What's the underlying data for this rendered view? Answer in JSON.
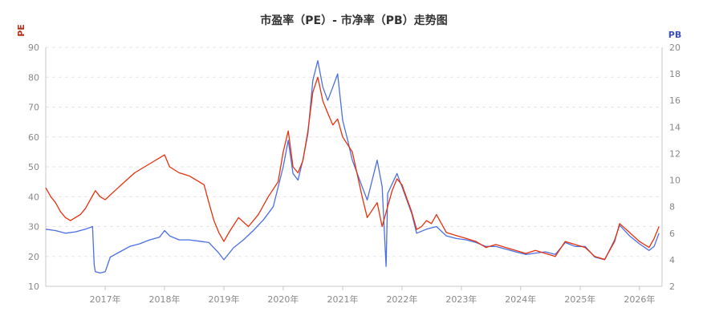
{
  "chart_data": {
    "type": "line",
    "title": "市盈率（PE）- 市净率（PB）走势图",
    "y_left_label": "PE",
    "y_right_label": "PB",
    "y_left_range": [
      10,
      90
    ],
    "y_left_ticks": [
      "10",
      "20",
      "30",
      "40",
      "50",
      "60",
      "70",
      "80",
      "90"
    ],
    "y_right_range": [
      2,
      20
    ],
    "y_right_ticks": [
      "2",
      "4",
      "6",
      "8",
      "10",
      "12",
      "14",
      "16",
      "18",
      "20"
    ],
    "x_range": [
      "2016-01-01",
      "2026-05-20"
    ],
    "x_ticks": [
      "2017年",
      "2018年",
      "2019年",
      "2020年",
      "2021年",
      "2022年",
      "2023年",
      "2024年",
      "2025年",
      "2026年"
    ],
    "grid": true,
    "colors": {
      "pe": "#e8300c",
      "pb": "#4a6fe3",
      "grid": "#e6e6e6",
      "axis": "#c8c8c8",
      "pe_label": "#b5311a",
      "pb_label": "#3d4fb8"
    },
    "series": [
      {
        "name": "PE",
        "axis": "left",
        "points": [
          [
            "2016-01-01",
            43
          ],
          [
            "2016-02-01",
            40
          ],
          [
            "2016-03-01",
            38
          ],
          [
            "2016-04-01",
            35
          ],
          [
            "2016-05-01",
            33
          ],
          [
            "2016-06-01",
            32
          ],
          [
            "2016-07-01",
            33
          ],
          [
            "2016-08-01",
            34
          ],
          [
            "2016-09-01",
            36
          ],
          [
            "2016-10-01",
            39
          ],
          [
            "2016-11-01",
            42
          ],
          [
            "2016-12-01",
            40
          ],
          [
            "2017-01-01",
            39
          ],
          [
            "2017-03-01",
            42
          ],
          [
            "2017-05-01",
            45
          ],
          [
            "2017-07-01",
            48
          ],
          [
            "2017-09-01",
            50
          ],
          [
            "2017-11-01",
            52
          ],
          [
            "2018-01-01",
            54
          ],
          [
            "2018-02-01",
            50
          ],
          [
            "2018-04-01",
            48
          ],
          [
            "2018-06-01",
            47
          ],
          [
            "2018-08-01",
            45
          ],
          [
            "2018-09-01",
            44
          ],
          [
            "2018-10-01",
            38
          ],
          [
            "2018-11-01",
            32
          ],
          [
            "2018-12-01",
            28
          ],
          [
            "2019-01-01",
            25
          ],
          [
            "2019-02-01",
            28
          ],
          [
            "2019-04-01",
            33
          ],
          [
            "2019-06-01",
            30
          ],
          [
            "2019-08-01",
            34
          ],
          [
            "2019-10-01",
            40
          ],
          [
            "2019-12-01",
            45
          ],
          [
            "2020-01-01",
            55
          ],
          [
            "2020-02-01",
            62
          ],
          [
            "2020-03-01",
            50
          ],
          [
            "2020-04-01",
            48
          ],
          [
            "2020-05-01",
            52
          ],
          [
            "2020-06-01",
            62
          ],
          [
            "2020-07-01",
            75
          ],
          [
            "2020-08-01",
            80
          ],
          [
            "2020-09-01",
            72
          ],
          [
            "2020-10-01",
            68
          ],
          [
            "2020-11-01",
            64
          ],
          [
            "2020-12-01",
            66
          ],
          [
            "2021-01-01",
            60
          ],
          [
            "2021-03-01",
            55
          ],
          [
            "2021-05-01",
            40
          ],
          [
            "2021-06-01",
            33
          ],
          [
            "2021-08-01",
            38
          ],
          [
            "2021-09-01",
            30
          ],
          [
            "2021-11-01",
            42
          ],
          [
            "2021-12-01",
            46
          ],
          [
            "2022-01-01",
            44
          ],
          [
            "2022-03-01",
            35
          ],
          [
            "2022-04-01",
            29
          ],
          [
            "2022-05-01",
            30
          ],
          [
            "2022-06-01",
            32
          ],
          [
            "2022-07-01",
            31
          ],
          [
            "2022-08-01",
            34
          ],
          [
            "2022-10-01",
            28
          ],
          [
            "2022-12-01",
            27
          ],
          [
            "2023-02-01",
            26
          ],
          [
            "2023-04-01",
            25
          ],
          [
            "2023-06-01",
            23
          ],
          [
            "2023-08-01",
            24
          ],
          [
            "2023-10-01",
            23
          ],
          [
            "2023-12-01",
            22
          ],
          [
            "2024-02-01",
            21
          ],
          [
            "2024-04-01",
            22
          ],
          [
            "2024-06-01",
            21
          ],
          [
            "2024-08-01",
            20
          ],
          [
            "2024-10-01",
            25
          ],
          [
            "2024-12-01",
            24
          ],
          [
            "2025-02-01",
            23
          ],
          [
            "2025-04-01",
            20
          ],
          [
            "2025-06-01",
            19
          ],
          [
            "2025-08-01",
            25
          ],
          [
            "2025-09-01",
            31
          ],
          [
            "2025-11-01",
            28
          ],
          [
            "2026-01-01",
            25
          ],
          [
            "2026-03-01",
            23
          ],
          [
            "2026-04-01",
            26
          ],
          [
            "2026-05-01",
            30
          ]
        ]
      },
      {
        "name": "PB",
        "axis": "right",
        "points": [
          [
            "2016-01-01",
            6.3
          ],
          [
            "2016-03-01",
            6.2
          ],
          [
            "2016-05-01",
            6.0
          ],
          [
            "2016-07-01",
            6.1
          ],
          [
            "2016-09-01",
            6.3
          ],
          [
            "2016-10-15",
            6.5
          ],
          [
            "2016-10-25",
            3.6
          ],
          [
            "2016-11-01",
            3.1
          ],
          [
            "2016-12-01",
            3.0
          ],
          [
            "2017-01-01",
            3.1
          ],
          [
            "2017-02-01",
            4.2
          ],
          [
            "2017-04-01",
            4.6
          ],
          [
            "2017-06-01",
            5.0
          ],
          [
            "2017-08-01",
            5.2
          ],
          [
            "2017-10-01",
            5.5
          ],
          [
            "2017-12-01",
            5.7
          ],
          [
            "2018-01-01",
            6.2
          ],
          [
            "2018-02-01",
            5.8
          ],
          [
            "2018-04-01",
            5.5
          ],
          [
            "2018-06-01",
            5.5
          ],
          [
            "2018-08-01",
            5.4
          ],
          [
            "2018-10-01",
            5.3
          ],
          [
            "2018-12-01",
            4.5
          ],
          [
            "2019-01-01",
            4.0
          ],
          [
            "2019-03-01",
            4.9
          ],
          [
            "2019-05-01",
            5.5
          ],
          [
            "2019-07-01",
            6.2
          ],
          [
            "2019-09-01",
            7.0
          ],
          [
            "2019-11-01",
            8.0
          ],
          [
            "2020-01-01",
            11.0
          ],
          [
            "2020-02-01",
            13.0
          ],
          [
            "2020-03-01",
            10.5
          ],
          [
            "2020-04-01",
            10.0
          ],
          [
            "2020-05-01",
            11.5
          ],
          [
            "2020-06-01",
            13.5
          ],
          [
            "2020-07-01",
            17.5
          ],
          [
            "2020-08-01",
            19.0
          ],
          [
            "2020-09-01",
            17.0
          ],
          [
            "2020-10-01",
            16.0
          ],
          [
            "2020-11-01",
            17.0
          ],
          [
            "2020-12-01",
            18.0
          ],
          [
            "2021-01-01",
            14.5
          ],
          [
            "2021-02-01",
            13.0
          ],
          [
            "2021-03-01",
            11.5
          ],
          [
            "2021-05-01",
            9.5
          ],
          [
            "2021-06-01",
            8.5
          ],
          [
            "2021-08-01",
            11.5
          ],
          [
            "2021-09-01",
            9.5
          ],
          [
            "2021-09-25",
            3.5
          ],
          [
            "2021-10-05",
            9.0
          ],
          [
            "2021-12-01",
            10.5
          ],
          [
            "2022-01-01",
            9.5
          ],
          [
            "2022-03-01",
            7.5
          ],
          [
            "2022-04-01",
            6.0
          ],
          [
            "2022-06-01",
            6.3
          ],
          [
            "2022-08-01",
            6.5
          ],
          [
            "2022-10-01",
            5.8
          ],
          [
            "2022-12-01",
            5.6
          ],
          [
            "2023-02-01",
            5.5
          ],
          [
            "2023-04-01",
            5.3
          ],
          [
            "2023-06-01",
            5.0
          ],
          [
            "2023-08-01",
            5.0
          ],
          [
            "2023-10-01",
            4.8
          ],
          [
            "2023-12-01",
            4.6
          ],
          [
            "2024-02-01",
            4.4
          ],
          [
            "2024-04-01",
            4.5
          ],
          [
            "2024-06-01",
            4.6
          ],
          [
            "2024-08-01",
            4.4
          ],
          [
            "2024-10-01",
            5.3
          ],
          [
            "2024-12-01",
            5.0
          ],
          [
            "2025-02-01",
            5.0
          ],
          [
            "2025-04-01",
            4.2
          ],
          [
            "2025-06-01",
            4.0
          ],
          [
            "2025-08-01",
            5.5
          ],
          [
            "2025-09-01",
            6.6
          ],
          [
            "2025-11-01",
            5.8
          ],
          [
            "2026-01-01",
            5.2
          ],
          [
            "2026-03-01",
            4.7
          ],
          [
            "2026-04-01",
            5.0
          ],
          [
            "2026-05-01",
            6.0
          ]
        ]
      }
    ]
  }
}
